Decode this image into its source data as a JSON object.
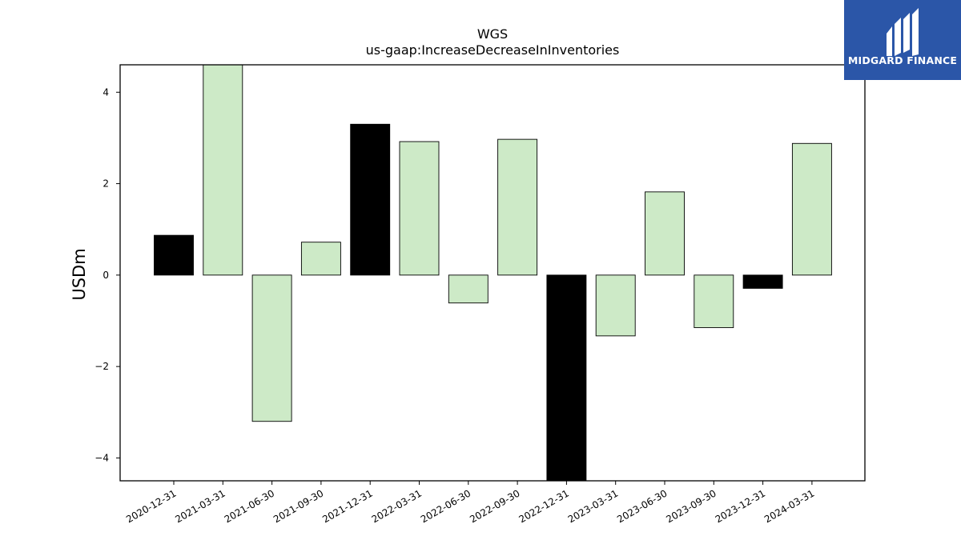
{
  "brand": {
    "name": "MIDGARD FINANCE",
    "bg_color": "#2b56a8",
    "icon": "midgard-m-logo-icon"
  },
  "chart_data": {
    "type": "bar",
    "title": "WGS",
    "subtitle": "us-gaap:IncreaseDecreaseInInventories",
    "xlabel": "",
    "ylabel": "USDm",
    "ylim": [
      -4.5,
      4.6
    ],
    "yticks": [
      -4,
      -2,
      0,
      2,
      4
    ],
    "ytick_labels": [
      "−4",
      "−2",
      "0",
      "2",
      "4"
    ],
    "grid": false,
    "categories": [
      "2020-12-31",
      "2021-03-31",
      "2021-06-30",
      "2021-09-30",
      "2021-12-31",
      "2022-03-31",
      "2022-06-30",
      "2022-09-30",
      "2022-12-31",
      "2023-03-31",
      "2023-06-30",
      "2023-09-30",
      "2023-12-31",
      "2024-03-31"
    ],
    "values": [
      0.87,
      5.2,
      -3.2,
      0.72,
      3.3,
      2.92,
      -0.61,
      2.97,
      -4.9,
      -1.33,
      1.82,
      -1.15,
      -0.29,
      2.88
    ],
    "annual": [
      true,
      false,
      false,
      false,
      true,
      false,
      false,
      false,
      true,
      false,
      false,
      false,
      true,
      false
    ],
    "colors": {
      "annual": "#000000",
      "quarterly": "#cdeac7",
      "edge": "#000000"
    }
  }
}
